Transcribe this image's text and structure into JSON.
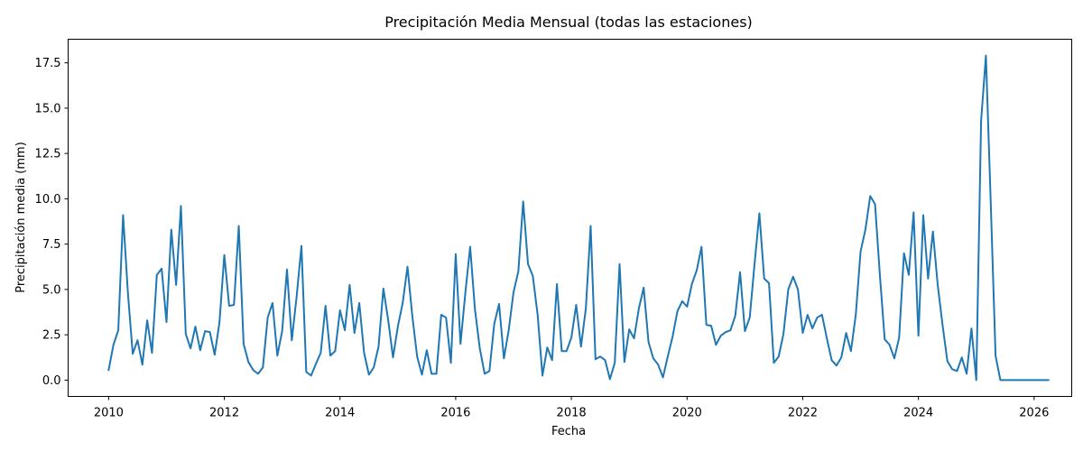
{
  "chart_data": {
    "type": "line",
    "title": "Precipitación Media Mensual (todas las estaciones)",
    "xlabel": "Fecha",
    "ylabel": "Precipitación media (mm)",
    "xlim": [
      2009.3,
      2026.65
    ],
    "ylim": [
      -0.9,
      18.8
    ],
    "x_ticks": [
      2010,
      2012,
      2014,
      2016,
      2018,
      2020,
      2022,
      2024,
      2026
    ],
    "y_ticks": [
      "0.0",
      "2.5",
      "5.0",
      "7.5",
      "10.0",
      "12.5",
      "15.0",
      "17.5"
    ],
    "grid": false,
    "line_color": "#1f77b4",
    "series": [
      {
        "x_start": 2010,
        "x_step_months": 1,
        "values": [
          0.55,
          1.95,
          2.75,
          9.1,
          4.8,
          1.45,
          2.2,
          0.85,
          3.3,
          1.5,
          5.8,
          6.15,
          3.2,
          8.3,
          5.25,
          9.6,
          2.55,
          1.75,
          2.95,
          1.65,
          2.7,
          2.65,
          1.4,
          3.2,
          6.9,
          4.1,
          4.15,
          8.5,
          2.0,
          1.0,
          0.55,
          0.35,
          0.7,
          3.45,
          4.25,
          1.35,
          2.7,
          6.1,
          2.2,
          4.6,
          7.4,
          0.45,
          0.25,
          0.9,
          1.5,
          4.1,
          1.35,
          1.6,
          3.85,
          2.75,
          5.25,
          2.6,
          4.25,
          1.5,
          0.3,
          0.7,
          1.85,
          5.05,
          3.3,
          1.25,
          2.95,
          4.25,
          6.25,
          3.55,
          1.3,
          0.3,
          1.65,
          0.35,
          0.35,
          3.6,
          3.45,
          0.95,
          6.95,
          2.0,
          4.8,
          7.35,
          3.9,
          1.75,
          0.35,
          0.5,
          3.1,
          4.2,
          1.2,
          2.75,
          4.85,
          6.0,
          9.85,
          6.4,
          5.75,
          3.6,
          0.25,
          1.8,
          1.1,
          5.3,
          1.6,
          1.6,
          2.35,
          4.15,
          1.85,
          3.95,
          8.5,
          1.15,
          1.3,
          1.1,
          0.05,
          0.95,
          6.4,
          1.0,
          2.8,
          2.3,
          3.95,
          5.1,
          2.1,
          1.2,
          0.85,
          0.15,
          1.3,
          2.4,
          3.8,
          4.35,
          4.05,
          5.3,
          6.05,
          7.35,
          3.05,
          3.0,
          1.95,
          2.45,
          2.65,
          2.75,
          3.55,
          5.95,
          2.7,
          3.45,
          6.4,
          9.2,
          5.6,
          5.35,
          0.95,
          1.3,
          2.55,
          5.0,
          5.7,
          5.0,
          2.6,
          3.6,
          2.85,
          3.45,
          3.6,
          2.3,
          1.1,
          0.8,
          1.25,
          2.6,
          1.6,
          3.6,
          7.1,
          8.3,
          10.15,
          9.7,
          5.8,
          2.25,
          1.95,
          1.2,
          2.35,
          7.0,
          5.8,
          9.25,
          2.45,
          9.1,
          5.6,
          8.2,
          5.25,
          3.05,
          1.05,
          0.6,
          0.5,
          1.25,
          0.35,
          2.85,
          0.0,
          14.3,
          17.9,
          9.8,
          1.35,
          0.0,
          0.0,
          0.0,
          0.0,
          0.0,
          0.0,
          0.0,
          0.0,
          0.0,
          0.0,
          0.0
        ]
      }
    ]
  }
}
